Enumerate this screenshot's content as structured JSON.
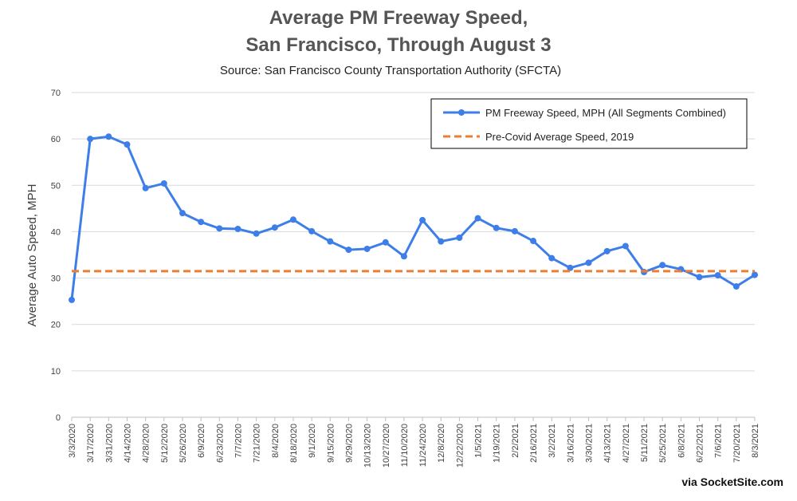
{
  "chart_data": {
    "type": "line",
    "title": "Average PM Freeway Speed,",
    "title_line2": "San Francisco, Through August 3",
    "subtitle": "Source: San Francisco County Transportation Authority (SFCTA)",
    "y_label": "Average Auto Speed, MPH",
    "watermark": "via SocketSite.com",
    "categories": [
      "3/3/2020",
      "3/17/2020",
      "3/31/2020",
      "4/14/2020",
      "4/28/2020",
      "5/12/2020",
      "5/26/2020",
      "6/9/2020",
      "6/23/2020",
      "7/7/2020",
      "7/21/2020",
      "8/4/2020",
      "8/18/2020",
      "9/1/2020",
      "9/15/2020",
      "9/29/2020",
      "10/13/2020",
      "10/27/2020",
      "11/10/2020",
      "11/24/2020",
      "12/8/2020",
      "12/22/2020",
      "1/5/2021",
      "1/19/2021",
      "2/2/2021",
      "2/16/2021",
      "3/2/2021",
      "3/16/2021",
      "3/30/2021",
      "4/13/2021",
      "4/27/2021",
      "5/11/2021",
      "5/25/2021",
      "6/8/2021",
      "6/22/2021",
      "7/6/2021",
      "7/20/2021",
      "8/3/2021"
    ],
    "series": [
      {
        "name": "PM Freeway Speed, MPH (All Segments Combined)",
        "color": "#3d7ee8",
        "values": [
          25.3,
          60,
          60.5,
          58.8,
          49.4,
          50.4,
          44,
          42.1,
          40.7,
          40.6,
          39.6,
          40.9,
          42.6,
          40.1,
          37.9,
          36.1,
          36.3,
          37.7,
          34.7,
          42.5,
          37.9,
          38.7,
          42.9,
          40.8,
          40.1,
          38,
          34.3,
          32.2,
          33.3,
          35.8,
          36.9,
          31.3,
          32.8,
          31.9,
          30.2,
          30.6,
          28.2,
          30.7
        ]
      },
      {
        "name": "Pre-Covid Average Speed, 2019",
        "color": "#ed7d31",
        "dashed": true,
        "value": 31.5
      }
    ],
    "ylim": [
      0,
      70
    ],
    "yticks": [
      0,
      10,
      20,
      30,
      40,
      50,
      60,
      70
    ],
    "grid": true
  }
}
